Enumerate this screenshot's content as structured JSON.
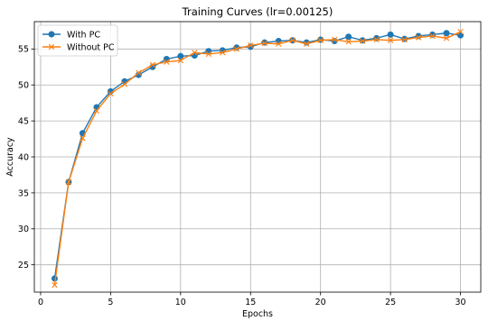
{
  "chart_data": {
    "type": "line",
    "title": "Training Curves (lr=0.00125)",
    "xlabel": "Epochs",
    "ylabel": "Accuracy",
    "xlim": [
      -0.45,
      31.45
    ],
    "ylim": [
      21.2,
      58.8
    ],
    "xticks": [
      0,
      5,
      10,
      15,
      20,
      25,
      30
    ],
    "yticks": [
      25,
      30,
      35,
      40,
      45,
      50,
      55
    ],
    "grid": true,
    "legend_position": "top-left",
    "x": [
      1,
      2,
      3,
      4,
      5,
      6,
      7,
      8,
      9,
      10,
      11,
      12,
      13,
      14,
      15,
      16,
      17,
      18,
      19,
      20,
      21,
      22,
      23,
      24,
      25,
      26,
      27,
      28,
      29,
      30
    ],
    "series": [
      {
        "name": "With PC",
        "color": "#1f77b4",
        "marker": "circle",
        "values": [
          23.1,
          36.5,
          43.3,
          46.9,
          49.1,
          50.5,
          51.4,
          52.5,
          53.6,
          54.0,
          54.1,
          54.7,
          54.8,
          55.2,
          55.3,
          55.9,
          56.1,
          56.2,
          55.9,
          56.3,
          56.1,
          56.7,
          56.2,
          56.5,
          57.0,
          56.4,
          56.8,
          57.0,
          57.2,
          56.9
        ]
      },
      {
        "name": "Without PC",
        "color": "#ff7f0e",
        "marker": "x",
        "values": [
          22.2,
          36.5,
          42.6,
          46.4,
          48.8,
          50.1,
          51.7,
          52.8,
          53.2,
          53.4,
          54.5,
          54.3,
          54.5,
          55.0,
          55.5,
          55.8,
          55.7,
          56.2,
          55.7,
          56.2,
          56.3,
          56.0,
          56.1,
          56.3,
          56.2,
          56.3,
          56.6,
          56.8,
          56.5,
          57.4
        ]
      }
    ]
  }
}
